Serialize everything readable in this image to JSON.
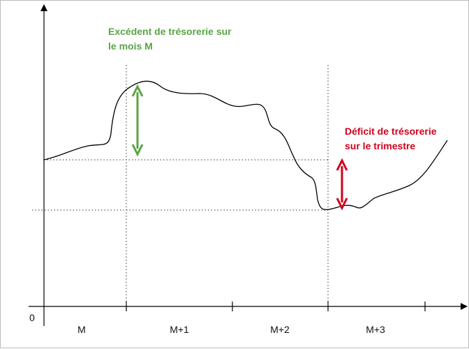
{
  "labels": {
    "origin": "0",
    "periods": [
      "M",
      "M+1",
      "M+2",
      "M+3"
    ]
  },
  "annotations": {
    "surplus_line1": "Excédent de trésorerie sur",
    "surplus_line2": "le mois M",
    "deficit_line1": "Déficit de trésorerie",
    "deficit_line2": "sur le trimestre"
  },
  "colors": {
    "surplus": "#5aa446",
    "deficit": "#d0021b",
    "curve": "#000000",
    "guides": "#333333"
  }
}
